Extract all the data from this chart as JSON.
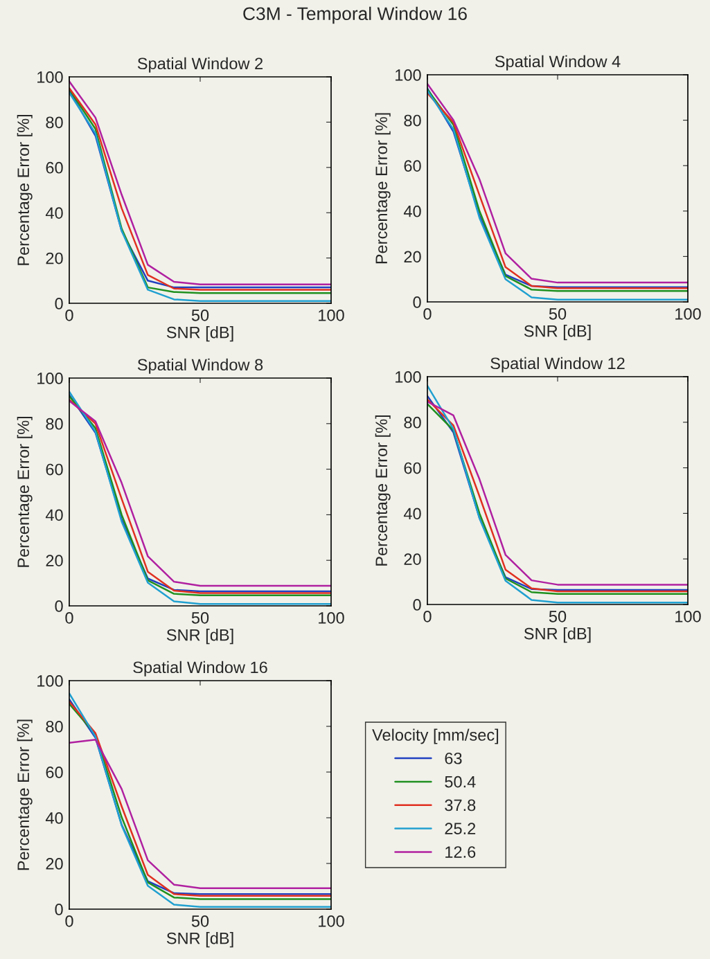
{
  "chart_data": [
    {
      "type": "line",
      "title": "Spatial Window 2",
      "xlabel": "SNR [dB]",
      "ylabel": "Percentage Error [%]",
      "annotations": [
        "C3M - Temporal Window 16"
      ],
      "x": [
        0,
        10,
        20,
        30,
        40,
        50,
        60,
        70,
        80,
        90,
        100
      ],
      "xlim": [
        0,
        100
      ],
      "xticks": [
        0,
        50,
        100
      ],
      "ylim": [
        0,
        100
      ],
      "yticks": [
        0,
        20,
        40,
        60,
        80,
        100
      ],
      "grid": false,
      "legend": false,
      "series": [
        {
          "color": "#2040c0",
          "values": [
            94,
            74,
            32,
            10,
            7,
            7,
            7,
            7,
            7,
            7,
            7
          ]
        },
        {
          "color": "#209020",
          "values": [
            94.5,
            77,
            33,
            7,
            5,
            4.5,
            4.5,
            4.5,
            4.5,
            4.5,
            4.5
          ]
        },
        {
          "color": "#e03020",
          "values": [
            95,
            79,
            42,
            12.5,
            6.5,
            6,
            6,
            6,
            6,
            6,
            6
          ]
        },
        {
          "color": "#20a0d0",
          "values": [
            93,
            75,
            32,
            6,
            1.7,
            1,
            1,
            1,
            1,
            1,
            1
          ]
        },
        {
          "color": "#b020a0",
          "values": [
            98,
            82,
            48,
            17,
            9.5,
            8.3,
            8.3,
            8.3,
            8.3,
            8.3,
            8.3
          ]
        }
      ]
    },
    {
      "type": "line",
      "title": "Spatial Window 4",
      "xlabel": "SNR [dB]",
      "ylabel": "Percentage Error [%]",
      "x": [
        0,
        10,
        20,
        30,
        40,
        50,
        60,
        70,
        80,
        90,
        100
      ],
      "xlim": [
        0,
        100
      ],
      "xticks": [
        0,
        50,
        100
      ],
      "ylim": [
        0,
        100
      ],
      "yticks": [
        0,
        20,
        40,
        60,
        80,
        100
      ],
      "grid": false,
      "legend": false,
      "series": [
        {
          "color": "#2040c0",
          "values": [
            94,
            75,
            38,
            12,
            7,
            6.5,
            6.5,
            6.5,
            6.5,
            6.5,
            6.5
          ]
        },
        {
          "color": "#209020",
          "values": [
            93.5,
            78,
            40,
            11.4,
            5.4,
            4.8,
            4.8,
            4.8,
            4.8,
            4.8,
            4.8
          ]
        },
        {
          "color": "#e03020",
          "values": [
            92,
            79,
            47,
            15.3,
            7,
            6,
            6,
            6,
            6,
            6,
            6
          ]
        },
        {
          "color": "#20a0d0",
          "values": [
            93,
            76,
            37,
            10,
            2,
            1,
            1,
            1,
            1,
            1,
            1
          ]
        },
        {
          "color": "#b020a0",
          "values": [
            96,
            80,
            54,
            21.4,
            10.2,
            8.5,
            8.5,
            8.5,
            8.5,
            8.5,
            8.5
          ]
        }
      ]
    },
    {
      "type": "line",
      "title": "Spatial Window 8",
      "xlabel": "SNR [dB]",
      "ylabel": "Percentage Error [%]",
      "x": [
        0,
        10,
        20,
        30,
        40,
        50,
        60,
        70,
        80,
        90,
        100
      ],
      "xlim": [
        0,
        100
      ],
      "xticks": [
        0,
        50,
        100
      ],
      "ylim": [
        0,
        100
      ],
      "yticks": [
        0,
        20,
        40,
        60,
        80,
        100
      ],
      "grid": false,
      "legend": false,
      "series": [
        {
          "color": "#2040c0",
          "values": [
            92.6,
            76,
            38,
            12,
            7,
            6.4,
            6.4,
            6.4,
            6.4,
            6.4,
            6.4
          ]
        },
        {
          "color": "#209020",
          "values": [
            92,
            78,
            40,
            11.2,
            5.3,
            4.6,
            4.6,
            4.6,
            4.6,
            4.6,
            4.6
          ]
        },
        {
          "color": "#e03020",
          "values": [
            90.5,
            80,
            47,
            15,
            6.7,
            5.6,
            5.6,
            5.6,
            5.6,
            5.6,
            5.6
          ]
        },
        {
          "color": "#20a0d0",
          "values": [
            94,
            76.5,
            37,
            10.2,
            2,
            0.8,
            0.8,
            0.8,
            0.8,
            0.8,
            0.8
          ]
        },
        {
          "color": "#b020a0",
          "values": [
            90,
            81,
            54,
            21.8,
            10.6,
            8.8,
            8.8,
            8.8,
            8.8,
            8.8,
            8.8
          ]
        }
      ]
    },
    {
      "type": "line",
      "title": "Spatial Window 12",
      "xlabel": "SNR [dB]",
      "ylabel": "Percentage Error [%]",
      "x": [
        0,
        10,
        20,
        30,
        40,
        50,
        60,
        70,
        80,
        90,
        100
      ],
      "xlim": [
        0,
        100
      ],
      "xticks": [
        0,
        50,
        100
      ],
      "ylim": [
        0,
        100
      ],
      "yticks": [
        0,
        20,
        40,
        60,
        80,
        100
      ],
      "grid": false,
      "legend": false,
      "series": [
        {
          "color": "#2040c0",
          "values": [
            91.5,
            75.5,
            38,
            12,
            6.8,
            6.4,
            6.4,
            6.4,
            6.4,
            6.4,
            6.4
          ]
        },
        {
          "color": "#209020",
          "values": [
            88,
            76.5,
            40,
            11.4,
            5.4,
            4.6,
            4.6,
            4.6,
            4.6,
            4.6,
            4.6
          ]
        },
        {
          "color": "#e03020",
          "values": [
            90,
            78.6,
            47.5,
            15.3,
            7.1,
            5.8,
            5.8,
            5.8,
            5.8,
            5.8,
            5.8
          ]
        },
        {
          "color": "#20a0d0",
          "values": [
            96,
            77,
            37.8,
            10.4,
            2,
            0.8,
            0.8,
            0.8,
            0.8,
            0.8,
            0.8
          ]
        },
        {
          "color": "#b020a0",
          "values": [
            89,
            83,
            55,
            21.8,
            10.6,
            8.7,
            8.7,
            8.7,
            8.7,
            8.7,
            8.7
          ]
        }
      ]
    },
    {
      "type": "line",
      "title": "Spatial Window 16",
      "xlabel": "SNR [dB]",
      "ylabel": "Percentage Error [%]",
      "legend_title": "Velocity [mm/sec]",
      "x": [
        0,
        10,
        20,
        30,
        40,
        50,
        60,
        70,
        80,
        90,
        100
      ],
      "xlim": [
        0,
        100
      ],
      "xticks": [
        0,
        50,
        100
      ],
      "ylim": [
        0,
        100
      ],
      "yticks": [
        0,
        20,
        40,
        60,
        80,
        100
      ],
      "grid": false,
      "legend": "right",
      "series": [
        {
          "name": "63",
          "color": "#2040c0",
          "values": [
            91.8,
            75,
            37,
            12.2,
            7,
            6.6,
            6.6,
            6.6,
            6.6,
            6.6,
            6.6
          ]
        },
        {
          "name": "50.4",
          "color": "#209020",
          "values": [
            89.8,
            76.5,
            40.3,
            11.7,
            5.1,
            4.4,
            4.4,
            4.4,
            4.4,
            4.4,
            4.4
          ]
        },
        {
          "name": "37.8",
          "color": "#e03020",
          "values": [
            90.8,
            77,
            45,
            15,
            6.6,
            5.8,
            5.8,
            5.8,
            5.8,
            5.8,
            5.8
          ]
        },
        {
          "name": "25.2",
          "color": "#20a0d0",
          "values": [
            94.4,
            75.5,
            36.7,
            10.2,
            2,
            1,
            1,
            1,
            1,
            1,
            1
          ]
        },
        {
          "name": "12.6",
          "color": "#b020a0",
          "values": [
            72.8,
            74.2,
            52.6,
            21.4,
            10.7,
            9.2,
            9.2,
            9.2,
            9.2,
            9.2,
            9.2
          ]
        }
      ]
    }
  ]
}
